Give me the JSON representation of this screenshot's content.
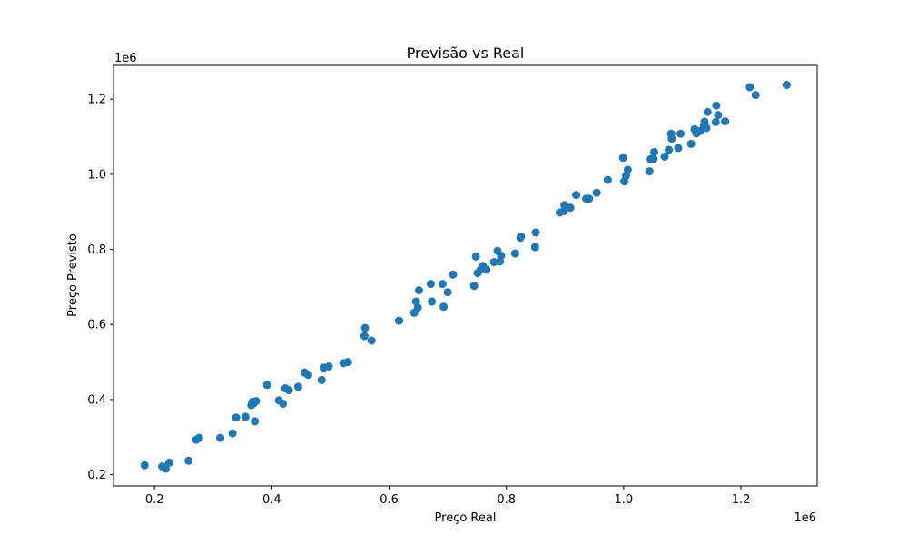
{
  "chart_data": {
    "type": "scatter",
    "title": "Previsão vs Real",
    "xlabel": "Preço Real",
    "ylabel": "Preço Previsto",
    "x_offset_label": "1e6",
    "y_offset_label": "1e6",
    "xlim": [
      0.13,
      1.33
    ],
    "ylim": [
      0.17,
      1.29
    ],
    "xticks": [
      0.2,
      0.4,
      0.6,
      0.8,
      1.0,
      1.2
    ],
    "yticks": [
      0.2,
      0.4,
      0.6,
      0.8,
      1.0,
      1.2
    ],
    "xtick_labels": [
      "0.2",
      "0.4",
      "0.6",
      "0.8",
      "1.0",
      "1.2"
    ],
    "ytick_labels": [
      "0.2",
      "0.4",
      "0.6",
      "0.8",
      "1.0",
      "1.2"
    ],
    "grid": false,
    "color": "#1f77b4",
    "points": [
      [
        0.183,
        0.225
      ],
      [
        0.213,
        0.222
      ],
      [
        0.219,
        0.216
      ],
      [
        0.225,
        0.232
      ],
      [
        0.258,
        0.237
      ],
      [
        0.271,
        0.293
      ],
      [
        0.276,
        0.298
      ],
      [
        0.312,
        0.298
      ],
      [
        0.333,
        0.31
      ],
      [
        0.339,
        0.352
      ],
      [
        0.355,
        0.354
      ],
      [
        0.365,
        0.385
      ],
      [
        0.367,
        0.394
      ],
      [
        0.369,
        0.39
      ],
      [
        0.371,
        0.342
      ],
      [
        0.373,
        0.396
      ],
      [
        0.392,
        0.439
      ],
      [
        0.412,
        0.398
      ],
      [
        0.419,
        0.389
      ],
      [
        0.423,
        0.43
      ],
      [
        0.429,
        0.425
      ],
      [
        0.445,
        0.434
      ],
      [
        0.456,
        0.472
      ],
      [
        0.462,
        0.466
      ],
      [
        0.485,
        0.452
      ],
      [
        0.488,
        0.485
      ],
      [
        0.497,
        0.488
      ],
      [
        0.522,
        0.497
      ],
      [
        0.53,
        0.5
      ],
      [
        0.558,
        0.569
      ],
      [
        0.559,
        0.591
      ],
      [
        0.57,
        0.557
      ],
      [
        0.617,
        0.61
      ],
      [
        0.643,
        0.631
      ],
      [
        0.646,
        0.661
      ],
      [
        0.649,
        0.645
      ],
      [
        0.651,
        0.691
      ],
      [
        0.671,
        0.708
      ],
      [
        0.673,
        0.661
      ],
      [
        0.691,
        0.708
      ],
      [
        0.693,
        0.647
      ],
      [
        0.7,
        0.686
      ],
      [
        0.709,
        0.733
      ],
      [
        0.745,
        0.703
      ],
      [
        0.748,
        0.781
      ],
      [
        0.751,
        0.737
      ],
      [
        0.756,
        0.746
      ],
      [
        0.76,
        0.756
      ],
      [
        0.766,
        0.746
      ],
      [
        0.779,
        0.766
      ],
      [
        0.785,
        0.796
      ],
      [
        0.789,
        0.768
      ],
      [
        0.791,
        0.783
      ],
      [
        0.815,
        0.789
      ],
      [
        0.824,
        0.831
      ],
      [
        0.825,
        0.834
      ],
      [
        0.849,
        0.806
      ],
      [
        0.85,
        0.845
      ],
      [
        0.891,
        0.898
      ],
      [
        0.898,
        0.902
      ],
      [
        0.899,
        0.918
      ],
      [
        0.909,
        0.911
      ],
      [
        0.919,
        0.945
      ],
      [
        0.936,
        0.935
      ],
      [
        0.941,
        0.935
      ],
      [
        0.954,
        0.951
      ],
      [
        0.973,
        0.985
      ],
      [
        0.999,
        1.044
      ],
      [
        1.001,
        0.981
      ],
      [
        1.004,
        0.996
      ],
      [
        1.007,
        1.012
      ],
      [
        1.044,
        1.008
      ],
      [
        1.046,
        1.04
      ],
      [
        1.051,
        1.041
      ],
      [
        1.052,
        1.059
      ],
      [
        1.07,
        1.047
      ],
      [
        1.077,
        1.065
      ],
      [
        1.081,
        1.108
      ],
      [
        1.082,
        1.095
      ],
      [
        1.093,
        1.07
      ],
      [
        1.097,
        1.108
      ],
      [
        1.115,
        1.081
      ],
      [
        1.121,
        1.12
      ],
      [
        1.124,
        1.109
      ],
      [
        1.13,
        1.115
      ],
      [
        1.137,
        1.13
      ],
      [
        1.138,
        1.14
      ],
      [
        1.141,
        1.123
      ],
      [
        1.143,
        1.166
      ],
      [
        1.157,
        1.139
      ],
      [
        1.158,
        1.183
      ],
      [
        1.161,
        1.158
      ],
      [
        1.173,
        1.141
      ],
      [
        1.215,
        1.232
      ],
      [
        1.225,
        1.211
      ],
      [
        1.278,
        1.238
      ]
    ]
  }
}
